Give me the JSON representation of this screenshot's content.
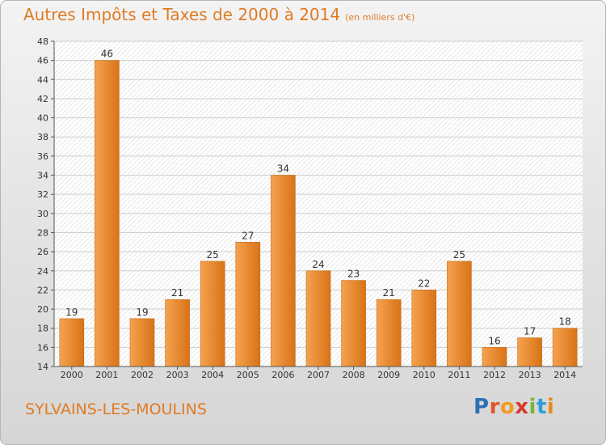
{
  "header": {
    "title": "Autres Impôts et Taxes de 2000 à 2014",
    "unit": "(en milliers d'€)"
  },
  "footer": {
    "commune": "SYLVAINS-LES-MOULINS",
    "brand_letters": [
      "P",
      "r",
      "o",
      "x",
      "i",
      "t",
      "i"
    ],
    "brand_colors": [
      "#2b6fb6",
      "#e0542a",
      "#f29a1f",
      "#d63a2c",
      "#7cb342",
      "#2b9fd6",
      "#e8891e"
    ]
  },
  "colors": {
    "bar_light": "#f6a24f",
    "bar_dark": "#d77317",
    "bar_edge": "#c86a15",
    "accent": "#e07b25"
  },
  "chart_data": {
    "type": "bar",
    "title": "Autres Impôts et Taxes de 2000 à 2014",
    "subtitle": "(en milliers d'€)",
    "xlabel": "",
    "ylabel": "",
    "categories": [
      "2000",
      "2001",
      "2002",
      "2003",
      "2004",
      "2005",
      "2006",
      "2007",
      "2008",
      "2009",
      "2010",
      "2011",
      "2012",
      "2013",
      "2014"
    ],
    "values": [
      19,
      46,
      19,
      21,
      25,
      27,
      34,
      24,
      23,
      21,
      22,
      25,
      16,
      17,
      18
    ],
    "ylim": [
      14,
      48
    ],
    "yticks": [
      14,
      16,
      18,
      20,
      22,
      24,
      26,
      28,
      30,
      32,
      34,
      36,
      38,
      40,
      42,
      44,
      46,
      48
    ],
    "grid": true,
    "legend": "none"
  }
}
